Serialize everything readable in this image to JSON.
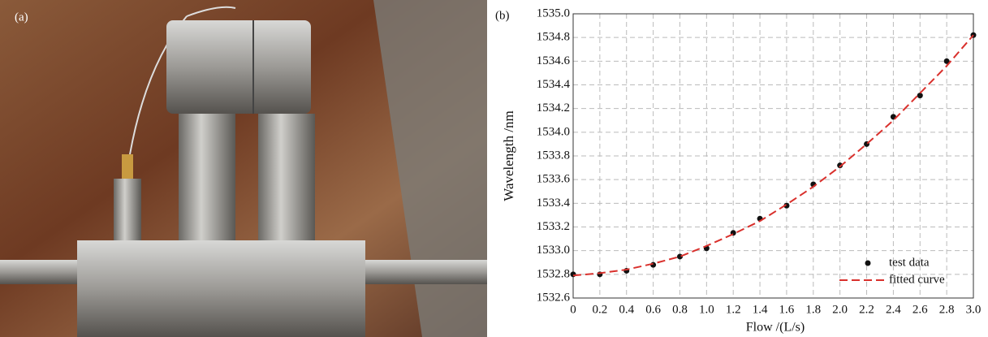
{
  "photo_label": "(a)",
  "chart_data": {
    "type": "scatter",
    "panel_label": "(b)",
    "x_label": "Flow /(L/s)",
    "y_label": "Wavelength /nm",
    "x": [
      0,
      0.2,
      0.4,
      0.6,
      0.8,
      1.0,
      1.2,
      1.4,
      1.6,
      1.8,
      2.0,
      2.2,
      2.4,
      2.6,
      2.8,
      3.0
    ],
    "series": [
      {
        "name": "test data",
        "type": "scatter",
        "color": "#111111",
        "values": [
          1532.8,
          1532.8,
          1532.83,
          1532.88,
          1532.95,
          1533.02,
          1533.15,
          1533.27,
          1533.38,
          1533.56,
          1533.72,
          1533.9,
          1534.13,
          1534.31,
          1534.6,
          1534.82
        ]
      },
      {
        "name": "fitted curve",
        "type": "line",
        "color": "#d9302c",
        "values": [
          1532.79,
          1532.81,
          1532.84,
          1532.89,
          1532.95,
          1533.04,
          1533.14,
          1533.25,
          1533.39,
          1533.54,
          1533.71,
          1533.9,
          1534.1,
          1534.33,
          1534.56,
          1534.82
        ]
      }
    ],
    "xlim": [
      0,
      3.0
    ],
    "ylim": [
      1532.6,
      1535.0
    ],
    "xticks": [
      0,
      0.2,
      0.4,
      0.6,
      0.8,
      {
        "value": 1,
        "label": "1.0"
      },
      1.2,
      1.4,
      1.6,
      1.8,
      {
        "value": 2,
        "label": "2.0"
      },
      2.2,
      2.4,
      2.6,
      2.8,
      {
        "value": 3,
        "label": "3.0"
      }
    ],
    "yticks": [
      1532.6,
      1532.8,
      {
        "value": 1533,
        "label": "1533.0"
      },
      1533.2,
      1533.4,
      1533.6,
      1533.8,
      {
        "value": 1534,
        "label": "1534.0"
      },
      1534.2,
      1534.4,
      1534.6,
      1534.8,
      {
        "value": 1535,
        "label": "1535.0"
      }
    ],
    "grid": true,
    "legend": "lower right"
  }
}
